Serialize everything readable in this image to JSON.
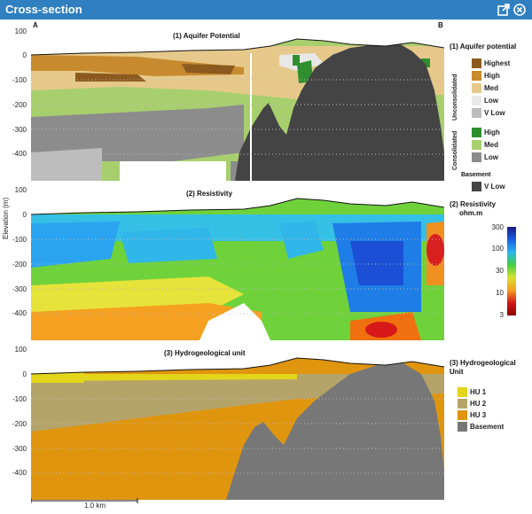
{
  "window": {
    "title": "Cross-section"
  },
  "section_ends": {
    "start": "A",
    "end": "B"
  },
  "axis": {
    "ylabel": "Elevation (m)",
    "panel1_ticks": [
      "100",
      "0",
      "-100",
      "-200",
      "-300",
      "-400"
    ],
    "panel2_ticks": [
      "100",
      "0",
      "-100",
      "-200",
      "-300",
      "-400"
    ],
    "panel3_ticks": [
      "100",
      "0",
      "-100",
      "-200",
      "-300",
      "-400"
    ]
  },
  "panels": {
    "p1_title": "(1) Aquifer Potential",
    "p2_title": "(2) Resistivity",
    "p3_title": "(3) Hydrogeological unit"
  },
  "legend1": {
    "title": "(1) Aquifer potential",
    "group_unconsolidated": "Unconsolidated",
    "group_consolidated": "Consolidated",
    "group_basement": "Basement",
    "items": [
      {
        "label": "Highest",
        "color": "#8c5a1e"
      },
      {
        "label": "High",
        "color": "#c88a2e"
      },
      {
        "label": "Med",
        "color": "#e6c98a"
      },
      {
        "label": "Low",
        "color": "#e8e8e8"
      },
      {
        "label": "V Low",
        "color": "#bdbdbd"
      },
      {
        "label": "High",
        "color": "#2f8f2f"
      },
      {
        "label": "Med",
        "color": "#a8cf6e"
      },
      {
        "label": "Low",
        "color": "#8c8c8c"
      },
      {
        "label": "V Low",
        "color": "#444444"
      }
    ]
  },
  "legend2": {
    "title": "(2) Resistivity",
    "unit": "ohm.m",
    "ticks": [
      "300",
      "100",
      "30",
      "10",
      "3"
    ]
  },
  "legend3": {
    "title": "(3) Hydrogeological Unit",
    "items": [
      {
        "label": "HU 1",
        "color": "#e3d51a"
      },
      {
        "label": "HU 2",
        "color": "#b5a46a"
      },
      {
        "label": "HU 3",
        "color": "#e0950f"
      },
      {
        "label": "Basement",
        "color": "#777777"
      }
    ]
  },
  "scalebar": {
    "label": "1.0 km"
  },
  "colors": {
    "titlebar": "#2f7fc1"
  }
}
